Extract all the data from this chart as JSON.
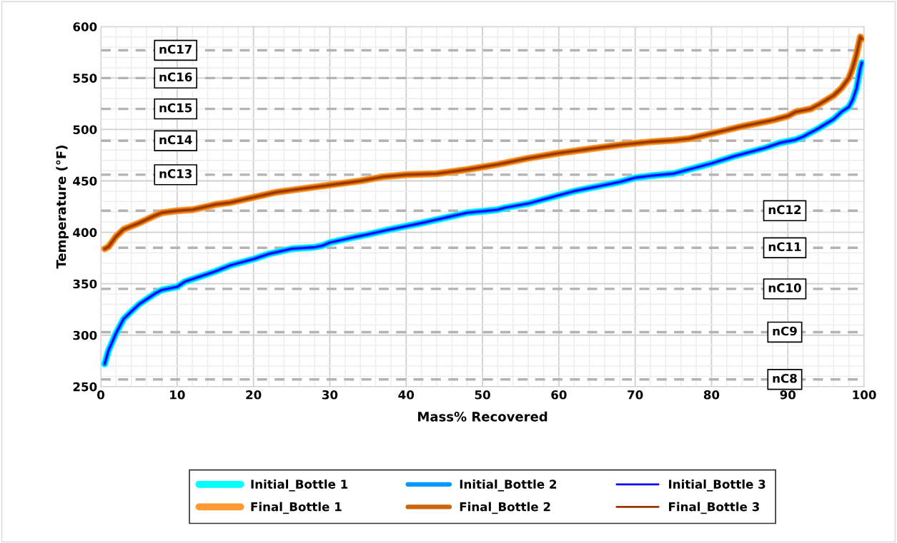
{
  "chart_data": {
    "type": "line",
    "xlabel": "Mass% Recovered",
    "ylabel": "Temperature (°F)",
    "xlim": [
      0,
      100
    ],
    "xticks": [
      0,
      10,
      20,
      30,
      40,
      50,
      60,
      70,
      80,
      90,
      100
    ],
    "ylim": [
      250,
      600
    ],
    "yticks": [
      250,
      300,
      350,
      400,
      450,
      500,
      550,
      600
    ],
    "grid": true,
    "legend": "bottom",
    "marker": "none",
    "line_style": "solid",
    "x": [
      0.5,
      1,
      2,
      3,
      5,
      7,
      8,
      10,
      11,
      15,
      17,
      20,
      22,
      25,
      28,
      29,
      30,
      33,
      35,
      38,
      42,
      45,
      48,
      50,
      52,
      53,
      56,
      60,
      62,
      66,
      68,
      70,
      72,
      75,
      78,
      80,
      83,
      87,
      89,
      91,
      92,
      94,
      96,
      97,
      98,
      98.5,
      99,
      99.5,
      99.7
    ],
    "series": [
      {
        "name": "Initial_Bottle 1",
        "color": "#00ffff",
        "values": [
          272,
          285,
          302,
          316,
          330,
          340,
          344,
          347,
          352,
          362,
          368,
          374,
          379,
          384,
          385.5,
          387,
          390,
          395,
          398,
          403,
          409,
          414,
          419,
          420.5,
          422,
          424,
          428,
          436,
          440,
          446,
          449,
          453,
          455,
          457,
          463,
          467,
          474,
          482,
          487,
          490,
          493,
          501,
          510,
          517,
          522,
          529,
          540,
          560,
          565
        ]
      },
      {
        "name": "Initial_Bottle 2",
        "color": "#0099ff",
        "values": [
          272,
          285,
          302,
          316,
          330,
          340,
          344,
          347,
          352,
          362,
          368,
          374,
          379,
          384,
          385.5,
          387,
          390,
          395,
          398,
          403,
          409,
          414,
          419,
          420.5,
          422,
          424,
          428,
          436,
          440,
          446,
          449,
          453,
          455,
          457,
          463,
          467,
          474,
          482,
          487,
          490,
          493,
          501,
          510,
          517,
          522,
          529,
          540,
          560,
          565
        ]
      },
      {
        "name": "Initial_Bottle 3",
        "color": "#0000ff",
        "values": [
          272,
          285,
          302,
          316,
          330,
          340,
          344,
          347,
          352,
          362,
          368,
          374,
          379,
          384,
          385.5,
          387,
          390,
          395,
          398,
          403,
          409,
          414,
          419,
          420.5,
          422,
          424,
          428,
          436,
          440,
          446,
          449,
          453,
          455,
          457,
          463,
          467,
          474,
          482,
          487,
          490,
          493,
          501,
          510,
          517,
          522,
          529,
          540,
          560,
          565
        ]
      },
      {
        "name": "Final_Bottle 1",
        "color": "#ff9933",
        "x": [
          0.5,
          1,
          2,
          3,
          5,
          7,
          8,
          10,
          12,
          15,
          17,
          20,
          23,
          25,
          30,
          34,
          37,
          40,
          44,
          48,
          52,
          56,
          60,
          65,
          68,
          72,
          75,
          77,
          80,
          84,
          88,
          90,
          91,
          93,
          94,
          96,
          97,
          98,
          98.5,
          99,
          99.5,
          99.7
        ],
        "values": [
          384,
          386,
          396,
          403,
          409,
          416,
          419,
          421,
          422,
          427,
          429,
          434,
          439,
          441,
          446,
          450,
          454,
          456,
          457,
          461,
          466,
          472,
          477,
          482,
          485,
          488,
          489.5,
          491,
          496,
          503,
          509,
          513,
          517,
          520,
          524,
          533,
          540,
          550,
          560,
          573,
          590,
          588
        ]
      },
      {
        "name": "Final_Bottle 2",
        "color": "#cc6600",
        "x": [
          0.5,
          1,
          2,
          3,
          5,
          7,
          8,
          10,
          12,
          15,
          17,
          20,
          23,
          25,
          30,
          34,
          37,
          40,
          44,
          48,
          52,
          56,
          60,
          65,
          68,
          72,
          75,
          77,
          80,
          84,
          88,
          90,
          91,
          93,
          94,
          96,
          97,
          98,
          98.5,
          99,
          99.5,
          99.7
        ],
        "values": [
          384,
          386,
          396,
          403,
          409,
          416,
          419,
          421,
          422,
          427,
          429,
          434,
          439,
          441,
          446,
          450,
          454,
          456,
          457,
          461,
          466,
          472,
          477,
          482,
          485,
          488,
          489.5,
          491,
          496,
          503,
          509,
          513,
          517,
          520,
          524,
          533,
          540,
          550,
          560,
          573,
          590,
          588
        ]
      },
      {
        "name": "Final_Bottle 3",
        "color": "#993300",
        "x": [
          0.5,
          1,
          2,
          3,
          5,
          7,
          8,
          10,
          12,
          15,
          17,
          20,
          23,
          25,
          30,
          34,
          37,
          40,
          44,
          48,
          52,
          56,
          60,
          65,
          68,
          72,
          75,
          77,
          80,
          84,
          88,
          90,
          91,
          93,
          94,
          96,
          97,
          98,
          98.5,
          99,
          99.5,
          99.7
        ],
        "values": [
          384,
          386,
          396,
          403,
          409,
          416,
          419,
          421,
          422,
          427,
          429,
          434,
          439,
          441,
          446,
          450,
          454,
          456,
          457,
          461,
          466,
          472,
          477,
          482,
          485,
          488,
          489.5,
          491,
          496,
          503,
          509,
          513,
          517,
          520,
          524,
          533,
          540,
          550,
          560,
          573,
          590,
          588
        ]
      }
    ],
    "ref_lines": [
      {
        "axis": "y",
        "value": 257,
        "label": "nC8",
        "color": "#b3b3b3",
        "line_style": "dashed"
      },
      {
        "axis": "y",
        "value": 303,
        "label": "nC9",
        "color": "#b3b3b3",
        "line_style": "dashed"
      },
      {
        "axis": "y",
        "value": 345,
        "label": "nC10",
        "color": "#b3b3b3",
        "line_style": "dashed"
      },
      {
        "axis": "y",
        "value": 385,
        "label": "nC11",
        "color": "#b3b3b3",
        "line_style": "dashed"
      },
      {
        "axis": "y",
        "value": 421,
        "label": "nC12",
        "color": "#b3b3b3",
        "line_style": "dashed"
      },
      {
        "axis": "y",
        "value": 456,
        "label": "nC13",
        "color": "#b3b3b3",
        "line_style": "dashed"
      },
      {
        "axis": "y",
        "value": 489,
        "label": "nC14",
        "color": "#b3b3b3",
        "line_style": "dashed"
      },
      {
        "axis": "y",
        "value": 520,
        "label": "nC15",
        "color": "#b3b3b3",
        "line_style": "dashed"
      },
      {
        "axis": "y",
        "value": 550,
        "label": "nC16",
        "color": "#b3b3b3",
        "line_style": "dashed"
      },
      {
        "axis": "y",
        "value": 577,
        "label": "nC17",
        "color": "#b3b3b3",
        "line_style": "dashed"
      }
    ]
  }
}
